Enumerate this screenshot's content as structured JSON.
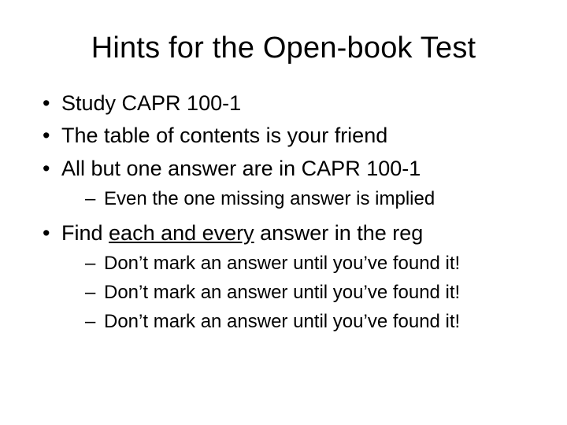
{
  "background_color": "#ffffff",
  "text_color": "#000000",
  "font_family": "Arial",
  "title": {
    "text": "Hints for the Open-book Test",
    "fontsize": 38,
    "align": "center"
  },
  "bullets": {
    "level1_fontsize": 27,
    "level2_fontsize": 24,
    "level1_marker": "•",
    "level2_marker": "–",
    "items": [
      {
        "text": "Study CAPR 100-1"
      },
      {
        "text": "The table of contents is your friend"
      },
      {
        "text": "All but one answer are in CAPR 100-1",
        "sub": [
          {
            "text": "Even the one missing answer is implied"
          }
        ]
      },
      {
        "prefix": "Find ",
        "underlined": "each and every",
        "suffix": " answer in the reg",
        "sub": [
          {
            "text": "Don’t mark an answer until you’ve found it!"
          },
          {
            "text": "Don’t mark an answer until you’ve found it!"
          },
          {
            "text": "Don’t mark an answer until you’ve found it!"
          }
        ]
      }
    ]
  }
}
